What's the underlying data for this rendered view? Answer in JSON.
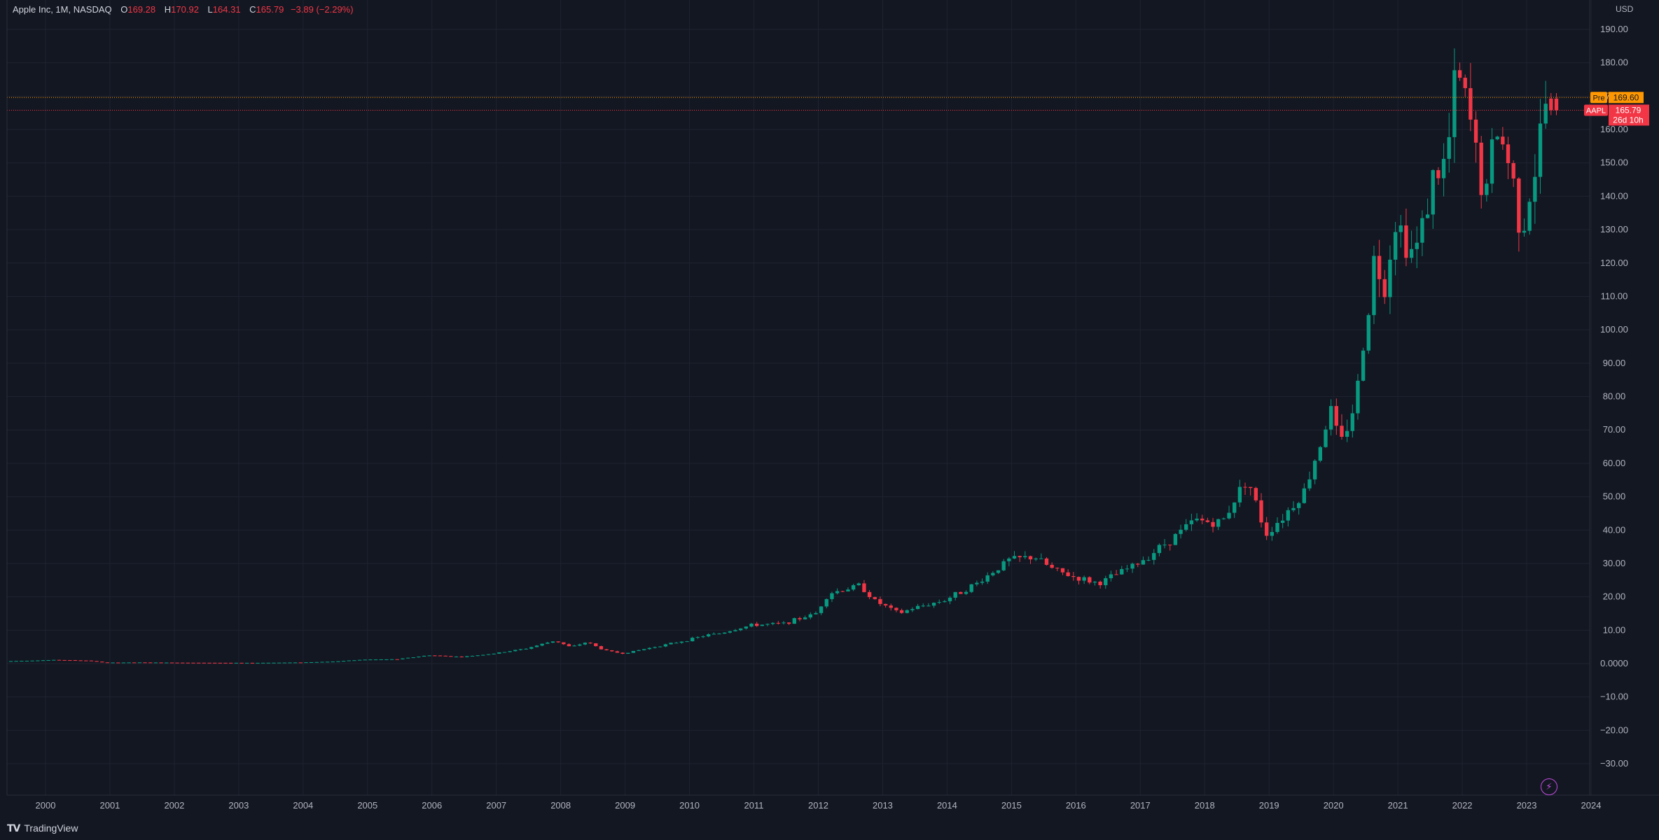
{
  "header": {
    "symbol": "Apple Inc, 1M, NASDAQ",
    "open_label": "O",
    "open": "169.28",
    "high_label": "H",
    "high": "170.92",
    "low_label": "L",
    "low": "164.31",
    "close_label": "C",
    "close": "165.79",
    "change": "−3.89 (−2.29%)"
  },
  "currency": "USD",
  "price_tags": {
    "pre_label": "Pre",
    "pre_value": "169.60",
    "sym_label": "AAPL",
    "sym_value": "165.79",
    "countdown": "26d 10h"
  },
  "footer": {
    "brand": "TradingView"
  },
  "colors": {
    "background": "#131722",
    "up": "#089981",
    "down": "#f23645",
    "pre": "#ff9800",
    "grid": "#1f2330",
    "text": "#b2b5be"
  },
  "chart_data": {
    "type": "candlestick",
    "title": "Apple Inc, 1M, NASDAQ",
    "ylim": [
      -35,
      195
    ],
    "xlim": [
      1999.4,
      2024.4
    ],
    "grid": true,
    "y_ticks": [
      "190.00",
      "180.00",
      "170.00",
      "160.00",
      "150.00",
      "140.00",
      "130.00",
      "120.00",
      "110.00",
      "100.00",
      "90.00",
      "80.00",
      "70.00",
      "60.00",
      "50.00",
      "40.00",
      "30.00",
      "20.00",
      "10.00",
      "0.0000",
      "−10.00",
      "−20.00",
      "−30.00"
    ],
    "x_ticks": [
      "2000",
      "2001",
      "2002",
      "2003",
      "2004",
      "2005",
      "2006",
      "2007",
      "2008",
      "2009",
      "2010",
      "2011",
      "2012",
      "2013",
      "2014",
      "2015",
      "2016",
      "2017",
      "2018",
      "2019",
      "2020",
      "2021",
      "2022",
      "2023",
      "2024"
    ],
    "pre_price": 169.6,
    "last_price": 165.79,
    "anchors": [
      [
        1999.5,
        0.75
      ],
      [
        2000.2,
        1.1
      ],
      [
        2000.7,
        0.9
      ],
      [
        2000.95,
        0.3
      ],
      [
        2001.5,
        0.35
      ],
      [
        2002.5,
        0.25
      ],
      [
        2003.3,
        0.22
      ],
      [
        2004.0,
        0.35
      ],
      [
        2004.5,
        0.6
      ],
      [
        2005.0,
        1.2
      ],
      [
        2005.5,
        1.3
      ],
      [
        2006.0,
        2.5
      ],
      [
        2006.5,
        2.0
      ],
      [
        2007.0,
        3.0
      ],
      [
        2007.5,
        4.5
      ],
      [
        2007.95,
        6.9
      ],
      [
        2008.2,
        4.9
      ],
      [
        2008.45,
        6.5
      ],
      [
        2008.7,
        4.1
      ],
      [
        2009.0,
        3.0
      ],
      [
        2009.5,
        5.0
      ],
      [
        2010.0,
        7.0
      ],
      [
        2010.3,
        8.5
      ],
      [
        2010.5,
        9.0
      ],
      [
        2011.0,
        11.5
      ],
      [
        2011.5,
        12.0
      ],
      [
        2012.0,
        15.0
      ],
      [
        2012.2,
        21.0
      ],
      [
        2012.7,
        23.5
      ],
      [
        2012.9,
        19.0
      ],
      [
        2013.3,
        15.0
      ],
      [
        2013.5,
        16.5
      ],
      [
        2014.0,
        19.0
      ],
      [
        2014.5,
        24.0
      ],
      [
        2015.0,
        31.0
      ],
      [
        2015.4,
        32.0
      ],
      [
        2015.7,
        28.0
      ],
      [
        2016.0,
        26.0
      ],
      [
        2016.4,
        24.0
      ],
      [
        2016.8,
        28.0
      ],
      [
        2017.0,
        30.0
      ],
      [
        2017.5,
        37.0
      ],
      [
        2017.9,
        43.0
      ],
      [
        2018.3,
        42.0
      ],
      [
        2018.7,
        56.0
      ],
      [
        2018.9,
        44.0
      ],
      [
        2019.0,
        39.0
      ],
      [
        2019.3,
        45.0
      ],
      [
        2019.6,
        52.0
      ],
      [
        2020.0,
        76.0
      ],
      [
        2020.15,
        65.0
      ],
      [
        2020.4,
        80.0
      ],
      [
        2020.7,
        125.0
      ],
      [
        2020.8,
        110.0
      ],
      [
        2021.0,
        133.0
      ],
      [
        2021.3,
        122.0
      ],
      [
        2021.6,
        146.0
      ],
      [
        2021.8,
        150.0
      ],
      [
        2021.95,
        178.0
      ],
      [
        2022.2,
        160.0
      ],
      [
        2022.4,
        137.0
      ],
      [
        2022.55,
        162.0
      ],
      [
        2022.8,
        148.0
      ],
      [
        2022.95,
        130.0
      ],
      [
        2023.15,
        145.0
      ],
      [
        2023.3,
        164.0
      ],
      [
        2023.35,
        169.28
      ],
      [
        2023.42,
        165.79
      ]
    ]
  }
}
